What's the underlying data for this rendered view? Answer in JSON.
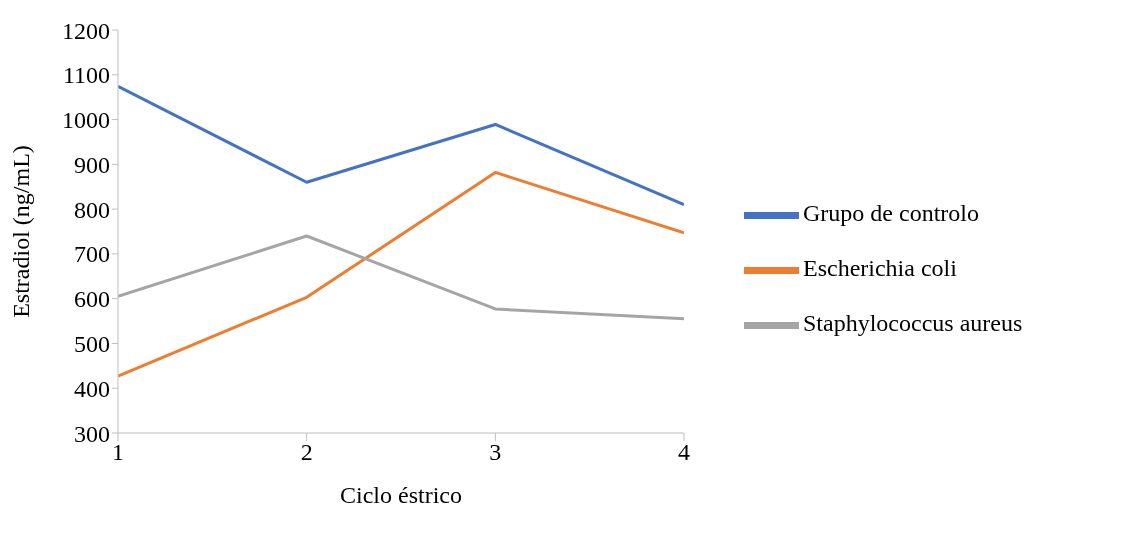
{
  "chart_data": {
    "type": "line",
    "xlabel": "Ciclo éstrico",
    "ylabel": "Estradiol (ng/mL)",
    "x": [
      1,
      2,
      3,
      4
    ],
    "xlim": [
      1,
      4
    ],
    "xticks": [
      1,
      2,
      3,
      4
    ],
    "ylim": [
      300,
      1200
    ],
    "yticks": [
      300,
      400,
      500,
      600,
      700,
      800,
      900,
      1000,
      1100,
      1200
    ],
    "grid": false,
    "legend": "right",
    "marker": "none",
    "line_style": "solid",
    "series": [
      {
        "name": "Grupo de controlo",
        "color": "#4472c4",
        "values": [
          1074,
          860,
          989,
          810
        ]
      },
      {
        "name": "Escherichia coli",
        "color": "#ed7d31",
        "values": [
          427,
          603,
          882,
          747
        ]
      },
      {
        "name": "Staphylococcus aureus",
        "color": "#a5a5a5",
        "values": [
          605,
          740,
          577,
          555
        ]
      }
    ]
  }
}
